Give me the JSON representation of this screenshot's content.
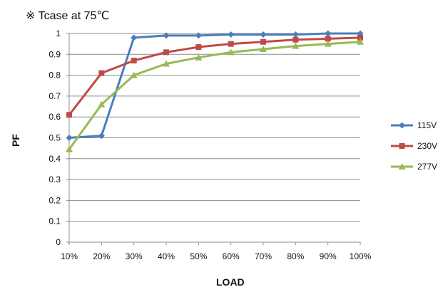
{
  "chart_data": {
    "type": "line",
    "annotation": "※ Tcase at 75℃",
    "xlabel": "LOAD",
    "ylabel": "PF",
    "categories": [
      "10%",
      "20%",
      "30%",
      "40%",
      "50%",
      "60%",
      "70%",
      "80%",
      "90%",
      "100%"
    ],
    "ylim": [
      0,
      1
    ],
    "yticks": [
      "0",
      "0.1",
      "0.2",
      "0.3",
      "0.4",
      "0.5",
      "0.6",
      "0.7",
      "0.8",
      "0.9",
      "1"
    ],
    "grid": true,
    "legend_position": "right",
    "series": [
      {
        "name": "115V",
        "color": "#4a7ebb",
        "marker": "diamond",
        "values": [
          0.5,
          0.51,
          0.98,
          0.99,
          0.99,
          0.995,
          0.995,
          0.995,
          1.0,
          1.0
        ]
      },
      {
        "name": "230V",
        "color": "#be4b48",
        "marker": "square",
        "values": [
          0.61,
          0.81,
          0.87,
          0.91,
          0.935,
          0.95,
          0.96,
          0.97,
          0.975,
          0.98
        ]
      },
      {
        "name": "277V",
        "color": "#98b954",
        "marker": "triangle",
        "values": [
          0.445,
          0.66,
          0.8,
          0.855,
          0.885,
          0.91,
          0.925,
          0.94,
          0.95,
          0.96
        ]
      }
    ]
  }
}
